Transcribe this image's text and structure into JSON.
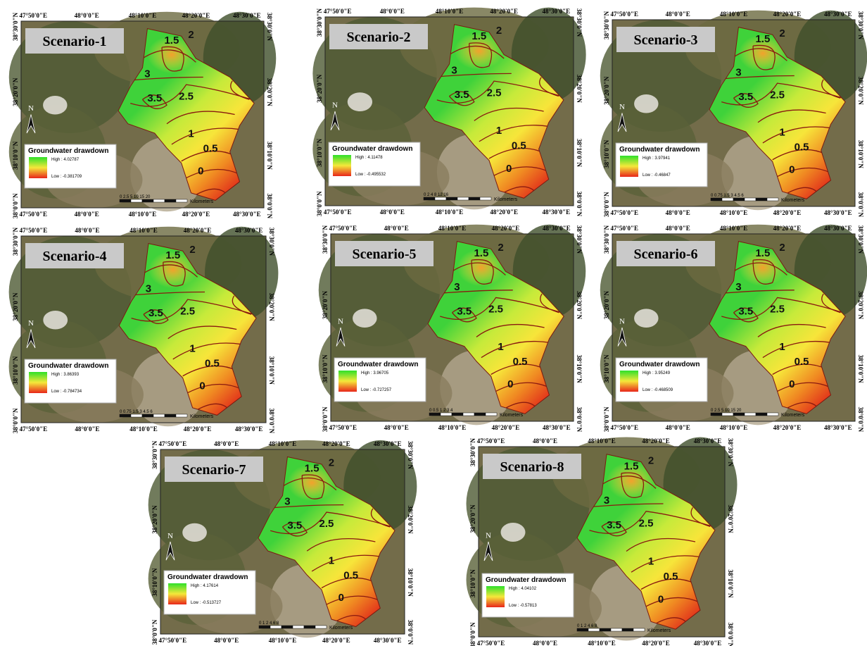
{
  "axis_labels": {
    "x": [
      "47°50'0\"E",
      "48°0'0\"E",
      "48°10'0\"E",
      "48°20'0\"E",
      "48°30'0\"E"
    ],
    "y": [
      "38°30'0\"N",
      "38°20'0\"N",
      "38°10'0\"N",
      "38°0'0\"N"
    ]
  },
  "contour_labels": [
    "1.5",
    "2",
    "3",
    "3.5",
    "2.5",
    "1",
    "0.5",
    "0"
  ],
  "legend_title": "Groundwater drawdown",
  "scale_unit": "Kilometers",
  "panels": [
    {
      "title": "Scenario-1",
      "high": "High : 4.02787",
      "low": "Low : -0.381709",
      "scale": "0 2.5 5 10 15 20"
    },
    {
      "title": "Scenario-2",
      "high": "High : 4.11478",
      "low": "Low : -0.495532",
      "scale": "0 2 4 8 12 16"
    },
    {
      "title": "Scenario-3",
      "high": "High : 3.97941",
      "low": "Low : -0.46847",
      "scale": "0 0.75 1.5 3 4.5 6"
    },
    {
      "title": "Scenario-4",
      "high": "High : 3.86393",
      "low": "Low : -0.784734",
      "scale": "0 0.75 1.5 3 4.5 6"
    },
    {
      "title": "Scenario-5",
      "high": "High : 3.96705",
      "low": "Low : -0.727257",
      "scale": "0 0.5 1 2 3 4"
    },
    {
      "title": "Scenario-6",
      "high": "High : 3.95249",
      "low": "Low : -0.468509",
      "scale": "0 2.5 5 10 15 20"
    },
    {
      "title": "Scenario-7",
      "high": "High : 4.17614",
      "low": "Low : -0.513727",
      "scale": "0 1 2 4 6 8"
    },
    {
      "title": "Scenario-8",
      "high": "High : 4.04102",
      "low": "Low : -0.57813",
      "scale": "0 1 2 4 6 8"
    }
  ]
}
